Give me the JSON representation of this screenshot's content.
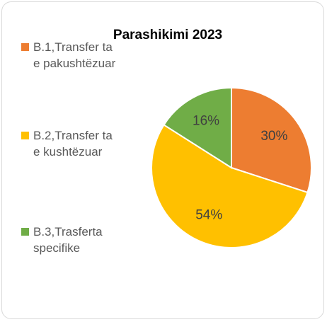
{
  "chart_data": {
    "type": "pie",
    "title": "Parashikimi 2023",
    "categories": [
      "B.1,Transfer ta e pakushtëzuar",
      "B.2,Transfer ta e kushtëzuar",
      "B.3,Trasferta specifike"
    ],
    "values": [
      30,
      54,
      16
    ],
    "value_labels": [
      "30%",
      "54%",
      "16%"
    ],
    "colors": [
      "#ED7D31",
      "#FFC000",
      "#70AD47"
    ],
    "legend": "left"
  }
}
